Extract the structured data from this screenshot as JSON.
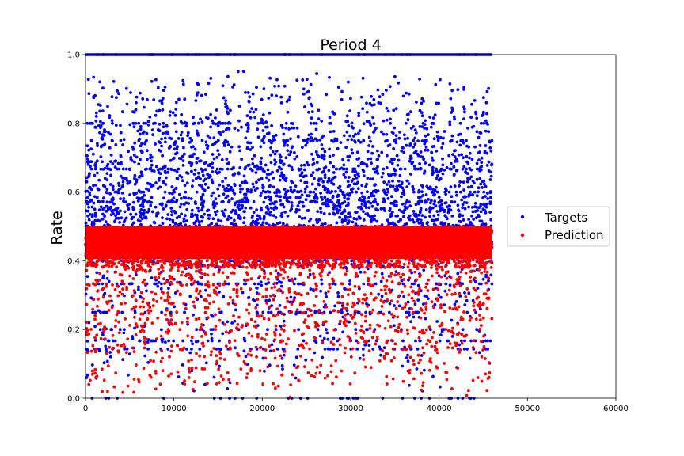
{
  "chart_data": {
    "type": "scatter",
    "title": "Period 4",
    "xlabel": "",
    "ylabel": "Rate",
    "xlim": [
      0,
      60000
    ],
    "ylim": [
      0.0,
      1.0
    ],
    "xticks": [
      "0",
      "10000",
      "20000",
      "30000",
      "40000",
      "50000",
      "60000"
    ],
    "yticks": [
      "0.0",
      "0.2",
      "0.4",
      "0.6",
      "0.8",
      "1.0"
    ],
    "grid": false,
    "legend_position": "right",
    "n_points_per_series": 46000,
    "series": [
      {
        "name": "Targets",
        "color": "#0000ff",
        "description": "Targets spread densely between 0.0 and 1.0; dense horizontal band at 1.0 and concentrations at ~0.5-0.75; discrete bands at 0.8, 0.75, 0.67, 0.6",
        "x_range": [
          0,
          46000
        ],
        "y_range": [
          0.0,
          1.0
        ]
      },
      {
        "name": "Prediction",
        "color": "#ff0000",
        "description": "Predictions between 0.0 and 0.5; solid dense block from ~0.4 to 0.5, thinning toward 0",
        "x_range": [
          0,
          46000
        ],
        "y_range": [
          0.0,
          0.5
        ]
      }
    ]
  }
}
